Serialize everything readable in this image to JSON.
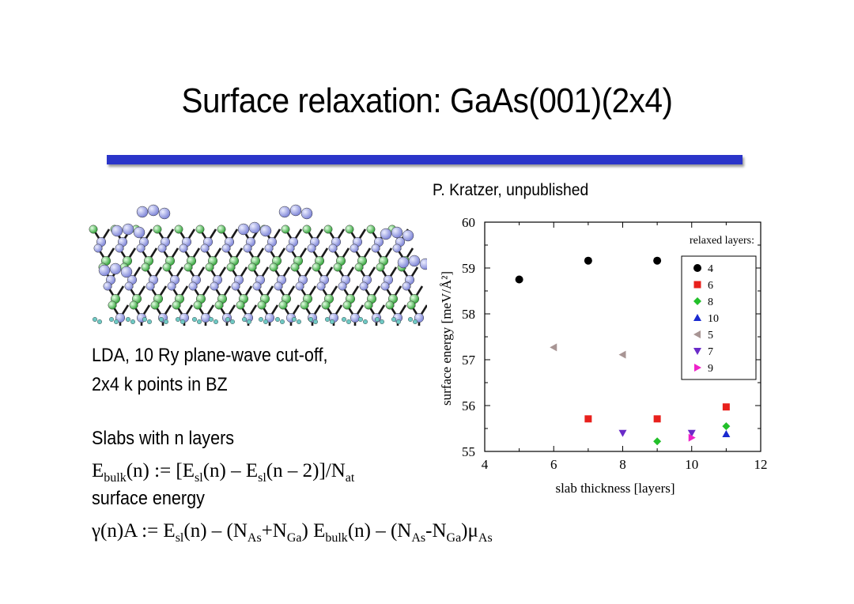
{
  "slide": {
    "title": "Surface relaxation: GaAs(001)(2x4)",
    "credit": "P. Kratzer, unpublished",
    "lines": {
      "l1": "LDA, 10 Ry plane-wave cut-off,",
      "l2": "2x4 k points in BZ",
      "l3": "Slabs with n layers",
      "l5": "surface energy"
    },
    "formula1": {
      "a": "E",
      "a_sub": "bulk",
      "b": "(n) := [E",
      "b_sub": "sl",
      "c": "(n) – E",
      "c_sub": "sl",
      "d": "(n – 2)]/N",
      "d_sub": "at"
    },
    "formula2": {
      "a": "γ(n)A :=  E",
      "a_sub": "sl",
      "b": "(n) – (N",
      "b_sub": "As",
      "c": "+N",
      "c_sub": "Ga",
      "d": ")  E",
      "d_sub": "bulk",
      "e": "(n) –  (N",
      "e_sub": "As",
      "f": "-N",
      "f_sub": "Ga",
      "g": ")μ",
      "g_sub": "As"
    },
    "accent_color": "#2b35c9"
  },
  "chart_data": {
    "type": "scatter",
    "xlabel": "slab thickness [layers]",
    "ylabel": "surface energy [meV/Å²]",
    "xlim": [
      4,
      12
    ],
    "ylim": [
      55,
      60
    ],
    "xticks": [
      "4",
      "6",
      "8",
      "10",
      "12"
    ],
    "yticks": [
      "55",
      "56",
      "57",
      "58",
      "59",
      "60"
    ],
    "legend_title": "relaxed layers:",
    "legend_position": "top-right",
    "series": [
      {
        "name": "4",
        "marker": "circle",
        "color": "#000000",
        "points": [
          [
            5,
            58.75
          ],
          [
            7,
            59.16
          ],
          [
            9,
            59.16
          ]
        ]
      },
      {
        "name": "6",
        "marker": "square",
        "color": "#e8201c",
        "points": [
          [
            7,
            55.71
          ],
          [
            9,
            55.71
          ],
          [
            11,
            55.97
          ]
        ]
      },
      {
        "name": "8",
        "marker": "diamond",
        "color": "#22c02a",
        "points": [
          [
            9,
            55.22
          ],
          [
            11,
            55.55
          ]
        ]
      },
      {
        "name": "10",
        "marker": "triangle-up",
        "color": "#1a2ad0",
        "points": [
          [
            11,
            55.38
          ]
        ]
      },
      {
        "name": "5",
        "marker": "triangle-left",
        "color": "#a89594",
        "points": [
          [
            6,
            57.27
          ],
          [
            8,
            57.11
          ]
        ]
      },
      {
        "name": "7",
        "marker": "triangle-down",
        "color": "#6a2bc8",
        "points": [
          [
            8,
            55.4
          ],
          [
            10,
            55.4
          ]
        ]
      },
      {
        "name": "9",
        "marker": "triangle-right",
        "color": "#ee22c8",
        "points": [
          [
            10,
            55.3
          ]
        ]
      }
    ]
  }
}
